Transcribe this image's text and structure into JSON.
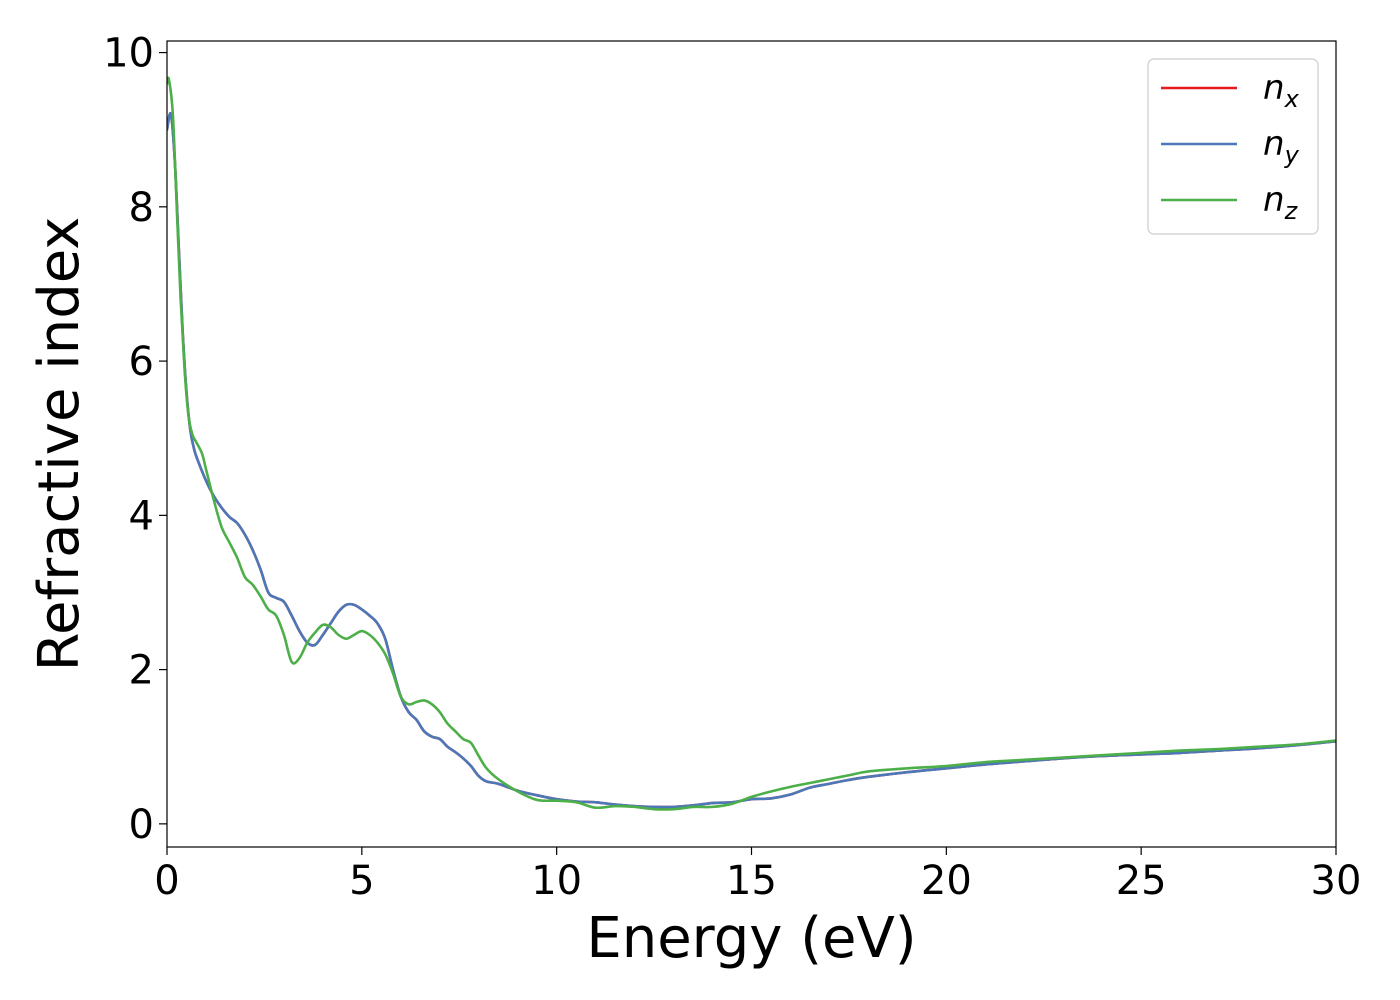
{
  "chart_data": {
    "type": "line",
    "xlabel": "Energy (eV)",
    "ylabel": "Refractive index",
    "xlim": [
      0,
      30
    ],
    "ylim": [
      -0.3,
      10.15
    ],
    "xticks": [
      0,
      5,
      10,
      15,
      20,
      25,
      30
    ],
    "yticks": [
      0,
      2,
      4,
      6,
      8,
      10
    ],
    "grid": false,
    "legend": "top-right",
    "series": [
      {
        "name": "n_x",
        "label_base": "n",
        "label_sub": "x",
        "color": "#e41a1c",
        "x": [
          0,
          0.1,
          0.2,
          0.3,
          0.4,
          0.5,
          0.6,
          0.7,
          0.8,
          1.0,
          1.2,
          1.4,
          1.6,
          1.8,
          2.0,
          2.2,
          2.4,
          2.6,
          2.8,
          3.0,
          3.2,
          3.4,
          3.6,
          3.8,
          4.0,
          4.2,
          4.4,
          4.6,
          4.8,
          5.0,
          5.2,
          5.4,
          5.6,
          5.8,
          6.0,
          6.2,
          6.4,
          6.6,
          6.8,
          7.0,
          7.2,
          7.4,
          7.6,
          7.8,
          8.0,
          8.2,
          8.5,
          9.0,
          9.5,
          10.0,
          10.5,
          11.0,
          11.5,
          12.0,
          12.5,
          13.0,
          13.5,
          14.0,
          14.5,
          15.0,
          15.5,
          16.0,
          16.5,
          17.0,
          17.5,
          18.0,
          19.0,
          20.0,
          21.0,
          22.0,
          23.0,
          24.0,
          25.0,
          26.0,
          27.0,
          28.0,
          29.0,
          30.0
        ],
        "y": [
          9.0,
          9.2,
          8.6,
          7.5,
          6.4,
          5.6,
          5.1,
          4.85,
          4.7,
          4.45,
          4.25,
          4.1,
          3.98,
          3.9,
          3.75,
          3.55,
          3.3,
          3.0,
          2.93,
          2.88,
          2.7,
          2.5,
          2.35,
          2.32,
          2.45,
          2.6,
          2.75,
          2.84,
          2.84,
          2.78,
          2.7,
          2.6,
          2.4,
          2.0,
          1.65,
          1.45,
          1.35,
          1.2,
          1.13,
          1.1,
          1.0,
          0.93,
          0.85,
          0.75,
          0.62,
          0.55,
          0.52,
          0.43,
          0.37,
          0.32,
          0.29,
          0.28,
          0.25,
          0.23,
          0.22,
          0.22,
          0.24,
          0.27,
          0.28,
          0.32,
          0.33,
          0.38,
          0.47,
          0.52,
          0.57,
          0.61,
          0.67,
          0.72,
          0.77,
          0.81,
          0.85,
          0.88,
          0.9,
          0.92,
          0.95,
          0.98,
          1.02,
          1.07
        ]
      },
      {
        "name": "n_y",
        "label_base": "n",
        "label_sub": "y",
        "color": "#4a78b8",
        "x": [
          0,
          0.1,
          0.2,
          0.3,
          0.4,
          0.5,
          0.6,
          0.7,
          0.8,
          1.0,
          1.2,
          1.4,
          1.6,
          1.8,
          2.0,
          2.2,
          2.4,
          2.6,
          2.8,
          3.0,
          3.2,
          3.4,
          3.6,
          3.8,
          4.0,
          4.2,
          4.4,
          4.6,
          4.8,
          5.0,
          5.2,
          5.4,
          5.6,
          5.8,
          6.0,
          6.2,
          6.4,
          6.6,
          6.8,
          7.0,
          7.2,
          7.4,
          7.6,
          7.8,
          8.0,
          8.2,
          8.5,
          9.0,
          9.5,
          10.0,
          10.5,
          11.0,
          11.5,
          12.0,
          12.5,
          13.0,
          13.5,
          14.0,
          14.5,
          15.0,
          15.5,
          16.0,
          16.5,
          17.0,
          17.5,
          18.0,
          19.0,
          20.0,
          21.0,
          22.0,
          23.0,
          24.0,
          25.0,
          26.0,
          27.0,
          28.0,
          29.0,
          30.0
        ],
        "y": [
          9.0,
          9.2,
          8.6,
          7.5,
          6.4,
          5.6,
          5.1,
          4.85,
          4.7,
          4.45,
          4.25,
          4.1,
          3.98,
          3.9,
          3.75,
          3.55,
          3.3,
          3.0,
          2.93,
          2.88,
          2.7,
          2.5,
          2.35,
          2.32,
          2.45,
          2.6,
          2.75,
          2.84,
          2.84,
          2.78,
          2.7,
          2.6,
          2.4,
          2.0,
          1.65,
          1.45,
          1.35,
          1.2,
          1.13,
          1.1,
          1.0,
          0.93,
          0.85,
          0.75,
          0.62,
          0.55,
          0.52,
          0.43,
          0.37,
          0.32,
          0.29,
          0.28,
          0.25,
          0.23,
          0.22,
          0.22,
          0.24,
          0.27,
          0.28,
          0.32,
          0.33,
          0.38,
          0.47,
          0.52,
          0.57,
          0.61,
          0.67,
          0.72,
          0.77,
          0.81,
          0.85,
          0.88,
          0.9,
          0.92,
          0.95,
          0.98,
          1.02,
          1.07
        ]
      },
      {
        "name": "n_z",
        "label_base": "n",
        "label_sub": "z",
        "color": "#4daf4a",
        "x": [
          0,
          0.05,
          0.15,
          0.25,
          0.35,
          0.45,
          0.55,
          0.65,
          0.75,
          0.9,
          1.0,
          1.2,
          1.4,
          1.6,
          1.8,
          2.0,
          2.2,
          2.4,
          2.6,
          2.8,
          3.0,
          3.2,
          3.4,
          3.6,
          3.8,
          4.0,
          4.2,
          4.4,
          4.6,
          4.8,
          5.0,
          5.2,
          5.4,
          5.6,
          5.8,
          6.0,
          6.2,
          6.4,
          6.6,
          6.8,
          7.0,
          7.2,
          7.4,
          7.6,
          7.8,
          8.0,
          8.2,
          8.5,
          9.0,
          9.5,
          10.0,
          10.5,
          11.0,
          11.5,
          12.0,
          12.5,
          13.0,
          13.5,
          14.0,
          14.5,
          15.0,
          15.5,
          16.0,
          16.5,
          17.0,
          17.5,
          18.0,
          19.0,
          20.0,
          21.0,
          22.0,
          23.0,
          24.0,
          25.0,
          26.0,
          27.0,
          28.0,
          29.0,
          30.0
        ],
        "y": [
          9.6,
          9.65,
          9.2,
          8.0,
          6.8,
          5.9,
          5.3,
          5.05,
          4.95,
          4.8,
          4.6,
          4.2,
          3.85,
          3.65,
          3.45,
          3.2,
          3.1,
          2.95,
          2.78,
          2.7,
          2.45,
          2.1,
          2.15,
          2.35,
          2.48,
          2.58,
          2.55,
          2.45,
          2.4,
          2.45,
          2.5,
          2.45,
          2.35,
          2.2,
          1.95,
          1.65,
          1.55,
          1.58,
          1.6,
          1.55,
          1.45,
          1.3,
          1.2,
          1.1,
          1.05,
          0.88,
          0.72,
          0.58,
          0.42,
          0.31,
          0.3,
          0.28,
          0.21,
          0.23,
          0.22,
          0.19,
          0.19,
          0.22,
          0.22,
          0.26,
          0.35,
          0.42,
          0.48,
          0.53,
          0.58,
          0.63,
          0.68,
          0.72,
          0.75,
          0.8,
          0.83,
          0.86,
          0.89,
          0.92,
          0.95,
          0.97,
          1.0,
          1.03,
          1.08
        ]
      }
    ]
  }
}
